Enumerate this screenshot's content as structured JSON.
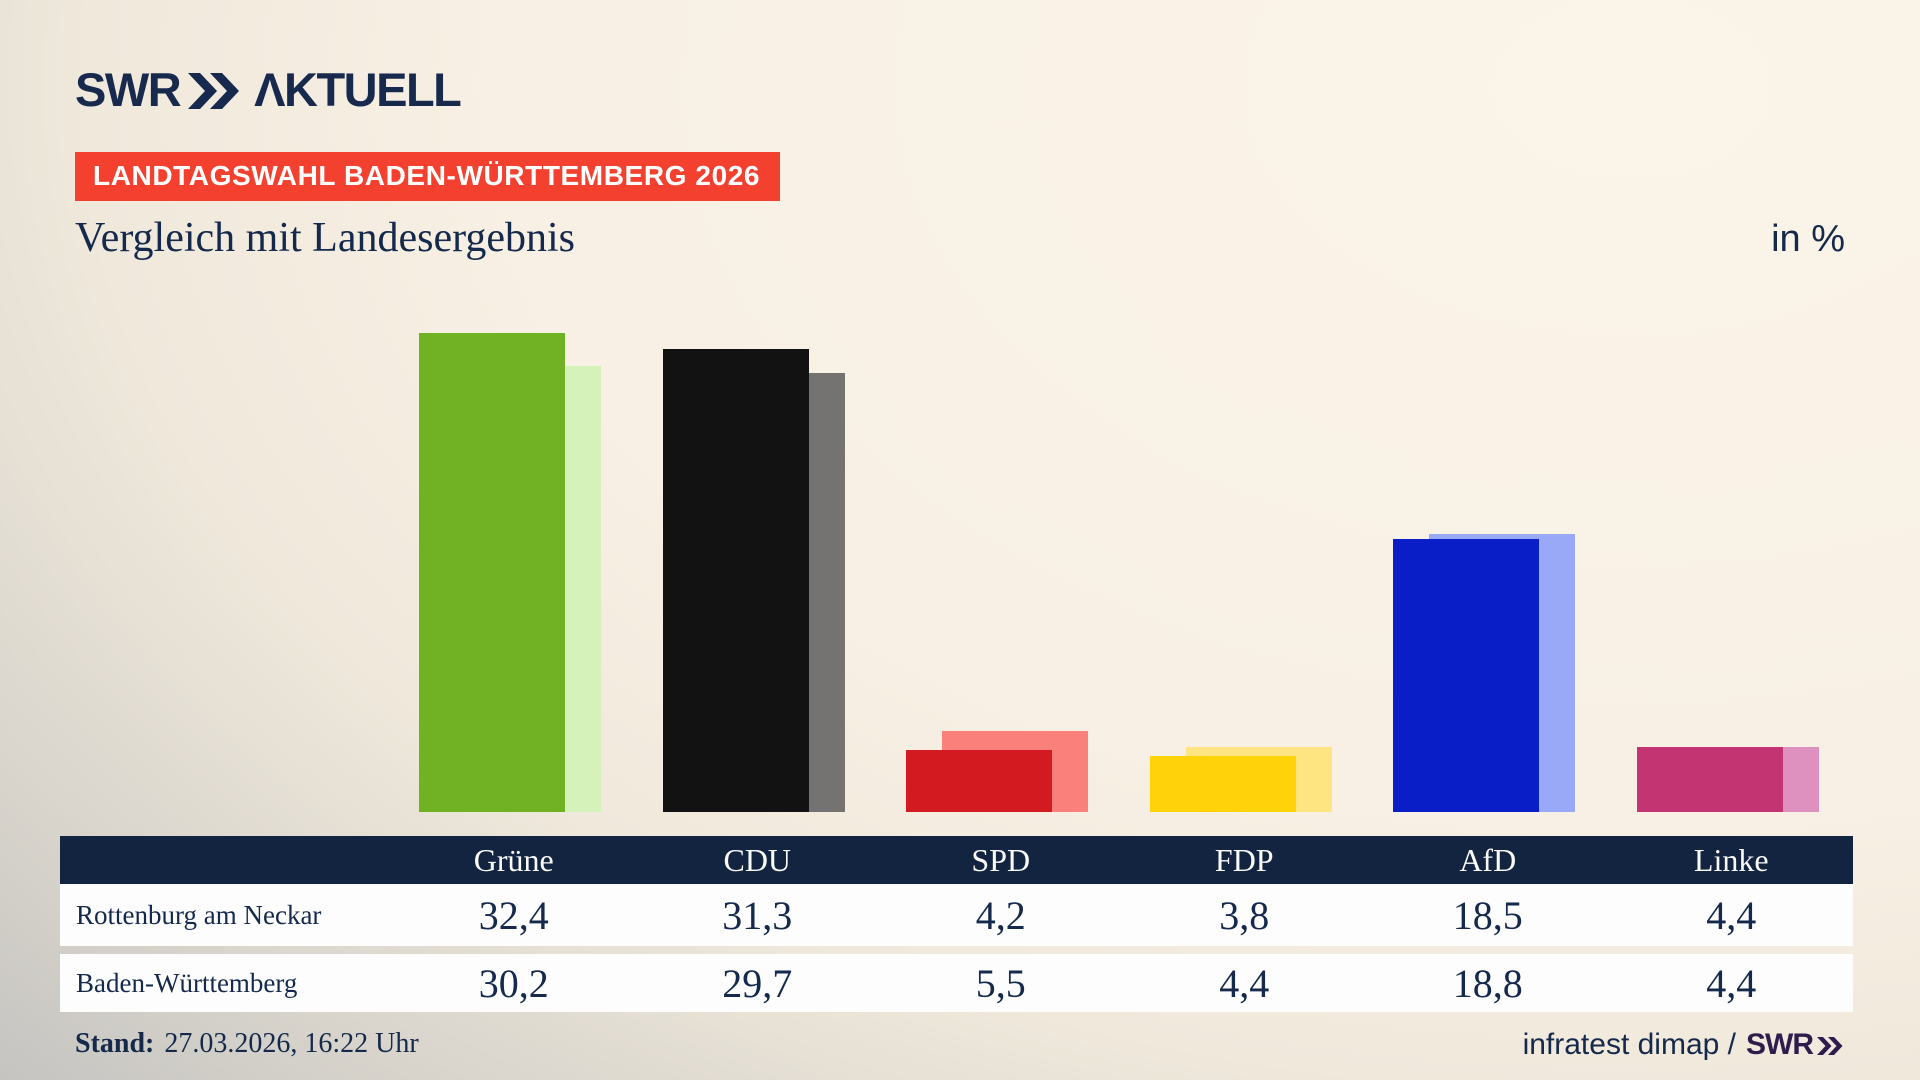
{
  "header": {
    "brand_swr": "SWR",
    "brand_aktuell": "ΛKTUELL",
    "badge": "LANDTAGSWAHL BADEN-WÜRTTEMBERG 2026",
    "title": "Vergleich mit Landesergebnis",
    "unit": "in %"
  },
  "chart_data": {
    "type": "bar",
    "title": "Vergleich mit Landesergebnis",
    "unit_label": "in %",
    "categories": [
      "Grüne",
      "CDU",
      "SPD",
      "FDP",
      "AfD",
      "Linke"
    ],
    "series": [
      {
        "name": "Rottenburg am Neckar",
        "values": [
          32.4,
          31.3,
          4.2,
          3.8,
          18.5,
          4.4
        ],
        "colors": [
          "#70b224",
          "#131212",
          "#d31a20",
          "#ffd20a",
          "#0a1ec8",
          "#c23472"
        ]
      },
      {
        "name": "Baden-Württemberg",
        "values": [
          30.2,
          29.7,
          5.5,
          4.4,
          18.8,
          4.4
        ],
        "colors": [
          "#d6f2bb",
          "#757371",
          "#fa807b",
          "#ffe582",
          "#99a8f7",
          "#de91be"
        ]
      }
    ],
    "ylim": [
      0,
      35
    ],
    "grid": false,
    "legend_position": "none (values shown in table below)"
  },
  "table": {
    "columns": [
      "Grüne",
      "CDU",
      "SPD",
      "FDP",
      "AfD",
      "Linke"
    ],
    "rows": [
      {
        "label": "Rottenburg am Neckar",
        "values": [
          "32,4",
          "31,3",
          "4,2",
          "3,8",
          "18,5",
          "4,4"
        ]
      },
      {
        "label": "Baden-Württemberg",
        "values": [
          "30,2",
          "29,7",
          "5,5",
          "4,4",
          "18,8",
          "4,4"
        ]
      }
    ]
  },
  "footer": {
    "stand_label": "Stand:",
    "stand_value": "27.03.2026, 16:22 Uhr",
    "source_text": "infratest dimap /",
    "source_brand": "SWR"
  },
  "colors": {
    "accent_red_badge": "#f4412f",
    "navy_text": "#14294b",
    "table_header_bg": "#132440",
    "table_row_bg": "#fdfdfd",
    "footer_brand_purple": "#2f1c4d",
    "background_cream": "#f8f0e4",
    "background_gray_corner": "#b6b5b3"
  }
}
